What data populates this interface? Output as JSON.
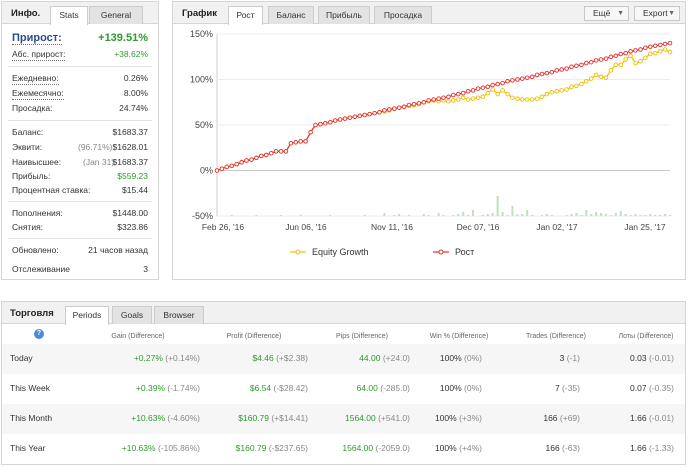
{
  "stats_panel": {
    "title": "Инфо.",
    "tabs": [
      "Stats",
      "General"
    ],
    "active_tab": "Stats",
    "gain_label": "Прирост:",
    "gain_value": "+139.51%",
    "abs_gain_label": "Абс. прирост:",
    "abs_gain_value": "+38.62%",
    "daily_label": "Ежедневно:",
    "daily_value": "0.26%",
    "monthly_label": "Ежемесячно:",
    "monthly_value": "8.00%",
    "drawdown_label": "Просадка:",
    "drawdown_value": "24.74%",
    "balance_label": "Баланс:",
    "balance_value": "$1683.37",
    "equity_label": "Эквити:",
    "equity_pct": "(96.71%)",
    "equity_value": "$1628.01",
    "highest_label": "Наивысшее:",
    "highest_date": "(Jan 31)",
    "highest_value": "$1683.37",
    "profit_label": "Прибыль:",
    "profit_value": "$559.23",
    "interest_label": "Процентная ставка:",
    "interest_value": "$15.44",
    "deposits_label": "Пополнения:",
    "deposits_value": "$1448.00",
    "withdrawals_label": "Снятия:",
    "withdrawals_value": "$323.86",
    "updated_label": "Обновлено:",
    "updated_value": "21 часов назад",
    "tracking_label": "Отслеживание",
    "tracking_value": "3"
  },
  "chart_panel": {
    "title": "График",
    "tabs": [
      "Рост",
      "Баланс",
      "Прибыль",
      "Просадка"
    ],
    "active_tab": "Рост",
    "dropdown_more": "Ещё",
    "dropdown_export": "Export",
    "legend_equity": "Equity Growth",
    "legend_growth": "Рост",
    "color_equity": "#f0c000",
    "color_growth": "#e83030"
  },
  "chart_data": {
    "type": "line",
    "title": "",
    "x_tick_labels": [
      "Feb 26, '16",
      "Jun 06, '16",
      "Nov 11, '16",
      "Dec 07, '16",
      "Jan 02, '17",
      "Jan 25, '17"
    ],
    "y_tick_labels": [
      "150%",
      "100%",
      "50%",
      "0%",
      "-50%"
    ],
    "ylim": [
      -50,
      150
    ],
    "grid": true,
    "legend_position": "bottom",
    "series": [
      {
        "name": "Equity Growth",
        "values": [
          0,
          2,
          4,
          5,
          7,
          9,
          11,
          12,
          14,
          16,
          17,
          19,
          21,
          21,
          21,
          30,
          31,
          32,
          32,
          42,
          50,
          51,
          52,
          53,
          55,
          56,
          57,
          58,
          59,
          60,
          61,
          62,
          63,
          64,
          65,
          66,
          68,
          69,
          70,
          71,
          72,
          73,
          75,
          76,
          77,
          76,
          77,
          76,
          77,
          78,
          80,
          78,
          79,
          80,
          81,
          85,
          89,
          84,
          88,
          84,
          80,
          79,
          78,
          78,
          78,
          79,
          81,
          84,
          86,
          87,
          88,
          89,
          92,
          93,
          95,
          98,
          101,
          105,
          103,
          102,
          110,
          116,
          116,
          122,
          126,
          118,
          120,
          124,
          128,
          129,
          131,
          133,
          130
        ]
      },
      {
        "name": "Рост",
        "values": [
          0,
          2,
          4,
          5,
          7,
          9,
          11,
          12,
          14,
          16,
          17,
          19,
          21,
          21,
          21,
          30,
          31,
          32,
          32,
          42,
          50,
          51,
          52,
          53,
          55,
          56,
          57,
          58,
          59,
          60,
          61,
          62,
          63,
          64,
          66,
          67,
          68,
          69,
          70,
          72,
          73,
          74,
          75,
          77,
          78,
          79,
          80,
          81,
          83,
          84,
          85,
          87,
          88,
          90,
          91,
          92,
          94,
          95,
          96,
          98,
          99,
          100,
          101,
          102,
          103,
          105,
          106,
          107,
          108,
          110,
          111,
          112,
          114,
          115,
          116,
          118,
          119,
          121,
          122,
          123,
          125,
          126,
          128,
          129,
          131,
          132,
          133,
          135,
          136,
          137,
          138,
          139,
          140
        ]
      },
      {
        "name": "volume",
        "values": [
          0,
          0,
          0,
          1,
          0,
          0,
          0,
          0,
          1,
          0,
          0,
          0,
          0,
          1,
          0,
          0,
          0,
          1,
          0,
          0,
          0,
          0,
          0,
          1,
          0,
          0,
          0,
          0,
          0,
          0,
          1,
          0,
          0,
          0,
          3,
          0,
          1,
          2,
          0,
          1,
          0,
          0,
          2,
          1,
          0,
          3,
          1,
          0,
          1,
          2,
          4,
          1,
          6,
          0,
          1,
          2,
          3,
          20,
          4,
          1,
          10,
          2,
          2,
          6,
          1,
          0,
          1,
          2,
          1,
          0,
          0,
          1,
          2,
          3,
          1,
          6,
          2,
          4,
          3,
          2,
          1,
          3,
          5,
          2,
          1,
          2,
          1,
          1,
          2,
          1,
          1,
          2,
          1
        ]
      }
    ]
  },
  "trading_panel": {
    "title": "Торговля",
    "tabs": [
      "Periods",
      "Goals",
      "Browser"
    ],
    "active_tab": "Periods",
    "help_icon": "?",
    "headers": [
      "Gain (Difference)",
      "Profit (Difference)",
      "Pips (Difference)",
      "Win % (Difference)",
      "Trades (Difference)",
      "Лоты (Difference)"
    ],
    "rows": [
      {
        "label": "Today",
        "gain": "+0.27%",
        "gain_diff": "(+0.14%)",
        "profit": "$4.46",
        "profit_diff": "(+$2.38)",
        "pips": "44.00",
        "pips_diff": "(+24.0)",
        "win": "100%",
        "win_diff": "(0%)",
        "trades": "3",
        "trades_diff": "(-1)",
        "lots": "0.03",
        "lots_diff": "(-0.01)"
      },
      {
        "label": "This Week",
        "gain": "+0.39%",
        "gain_diff": "(-1.74%)",
        "profit": "$6.54",
        "profit_diff": "(-$28.42)",
        "pips": "64.00",
        "pips_diff": "(-285.0)",
        "win": "100%",
        "win_diff": "(0%)",
        "trades": "7",
        "trades_diff": "(-35)",
        "lots": "0.07",
        "lots_diff": "(-0.35)"
      },
      {
        "label": "This Month",
        "gain": "+10.63%",
        "gain_diff": "(-4.60%)",
        "profit": "$160.79",
        "profit_diff": "(+$14.41)",
        "pips": "1564.00",
        "pips_diff": "(+541.0)",
        "win": "100%",
        "win_diff": "(+3%)",
        "trades": "166",
        "trades_diff": "(+69)",
        "lots": "1.66",
        "lots_diff": "(-0.01)"
      },
      {
        "label": "This Year",
        "gain": "+10.63%",
        "gain_diff": "(-105.86%)",
        "profit": "$160.79",
        "profit_diff": "(-$237.65)",
        "pips": "1564.00",
        "pips_diff": "(-2059.0)",
        "win": "100%",
        "win_diff": "(+4%)",
        "trades": "166",
        "trades_diff": "(-63)",
        "lots": "1.66",
        "lots_diff": "(-1.33)"
      }
    ]
  }
}
